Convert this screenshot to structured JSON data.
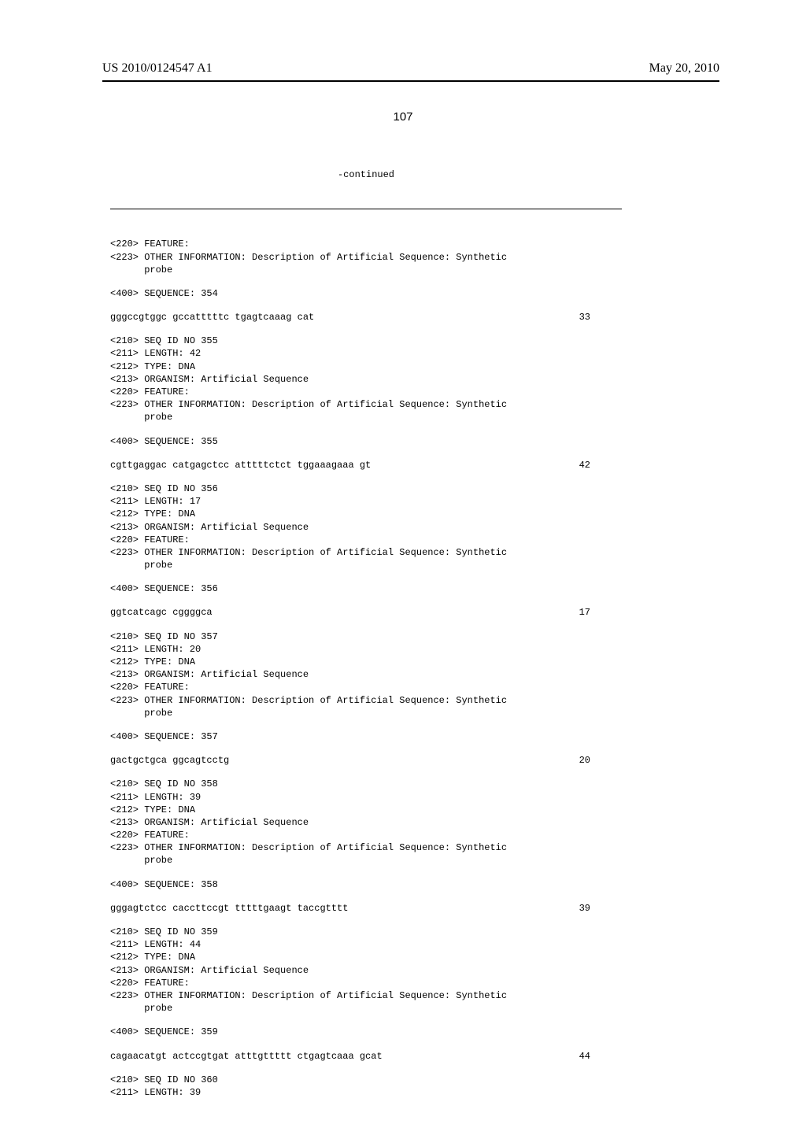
{
  "header": {
    "pub_number": "US 2010/0124547 A1",
    "pub_date": "May 20, 2010",
    "page_number": "107"
  },
  "continued_label": "-continued",
  "blocks": [
    {
      "lines": [
        "<220> FEATURE:",
        "<223> OTHER INFORMATION: Description of Artificial Sequence: Synthetic",
        "      probe"
      ]
    },
    {
      "lines": [
        "<400> SEQUENCE: 354"
      ]
    },
    {
      "seq": "gggccgtggc gccatttttc tgagtcaaag cat",
      "num": "33"
    },
    {
      "lines": [
        "<210> SEQ ID NO 355",
        "<211> LENGTH: 42",
        "<212> TYPE: DNA",
        "<213> ORGANISM: Artificial Sequence",
        "<220> FEATURE:",
        "<223> OTHER INFORMATION: Description of Artificial Sequence: Synthetic",
        "      probe"
      ]
    },
    {
      "lines": [
        "<400> SEQUENCE: 355"
      ]
    },
    {
      "seq": "cgttgaggac catgagctcc atttttctct tggaaagaaa gt",
      "num": "42"
    },
    {
      "lines": [
        "<210> SEQ ID NO 356",
        "<211> LENGTH: 17",
        "<212> TYPE: DNA",
        "<213> ORGANISM: Artificial Sequence",
        "<220> FEATURE:",
        "<223> OTHER INFORMATION: Description of Artificial Sequence: Synthetic",
        "      probe"
      ]
    },
    {
      "lines": [
        "<400> SEQUENCE: 356"
      ]
    },
    {
      "seq": "ggtcatcagc cggggca",
      "num": "17"
    },
    {
      "lines": [
        "<210> SEQ ID NO 357",
        "<211> LENGTH: 20",
        "<212> TYPE: DNA",
        "<213> ORGANISM: Artificial Sequence",
        "<220> FEATURE:",
        "<223> OTHER INFORMATION: Description of Artificial Sequence: Synthetic",
        "      probe"
      ]
    },
    {
      "lines": [
        "<400> SEQUENCE: 357"
      ]
    },
    {
      "seq": "gactgctgca ggcagtcctg",
      "num": "20"
    },
    {
      "lines": [
        "<210> SEQ ID NO 358",
        "<211> LENGTH: 39",
        "<212> TYPE: DNA",
        "<213> ORGANISM: Artificial Sequence",
        "<220> FEATURE:",
        "<223> OTHER INFORMATION: Description of Artificial Sequence: Synthetic",
        "      probe"
      ]
    },
    {
      "lines": [
        "<400> SEQUENCE: 358"
      ]
    },
    {
      "seq": "gggagtctcc caccttccgt tttttgaagt taccgtttt",
      "num": "39"
    },
    {
      "lines": [
        "<210> SEQ ID NO 359",
        "<211> LENGTH: 44",
        "<212> TYPE: DNA",
        "<213> ORGANISM: Artificial Sequence",
        "<220> FEATURE:",
        "<223> OTHER INFORMATION: Description of Artificial Sequence: Synthetic",
        "      probe"
      ]
    },
    {
      "lines": [
        "<400> SEQUENCE: 359"
      ]
    },
    {
      "seq": "cagaacatgt actccgtgat atttgttttt ctgagtcaaa gcat",
      "num": "44"
    },
    {
      "lines": [
        "<210> SEQ ID NO 360",
        "<211> LENGTH: 39"
      ]
    }
  ]
}
